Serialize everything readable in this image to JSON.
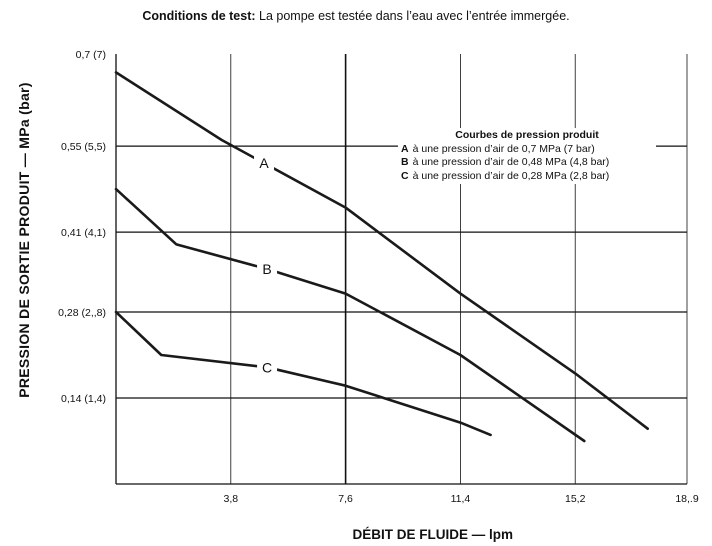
{
  "caption": {
    "prefix": "Conditions de test:",
    "text": "La pompe est testée dans l’eau avec l’entrée immergée."
  },
  "chart_data": {
    "type": "line",
    "xlabel": "DÉBIT DE FLUIDE — lpm",
    "ylabel": "PRESSION DE SORTIE PRODUIT — MPa (bar)",
    "xlim": [
      0,
      18.9
    ],
    "ylim": [
      0,
      0.7
    ],
    "x_ticks": [
      {
        "value": 3.8,
        "label": "3,8"
      },
      {
        "value": 7.6,
        "label": "7,6"
      },
      {
        "value": 11.4,
        "label": "11,4"
      },
      {
        "value": 15.2,
        "label": "15,2"
      },
      {
        "value": 18.9,
        "label": "18,.9"
      }
    ],
    "y_ticks": [
      {
        "value": 0.14,
        "label": "0,14 (1,4)"
      },
      {
        "value": 0.28,
        "label": "0,28 (2,,8)"
      },
      {
        "value": 0.41,
        "label": "0,41 (4,1)"
      },
      {
        "value": 0.55,
        "label": "0,55 (5,5)"
      },
      {
        "value": 0.7,
        "label": "0,7 (7)"
      }
    ],
    "grid": true,
    "legend": {
      "title": "Courbes de pression produit",
      "position": "top-right",
      "entries": [
        {
          "key": "A",
          "text": "à une pression d’air de 0,7 MPa (7 bar)"
        },
        {
          "key": "B",
          "text": "à une pression d’air de 0,48 MPa (4,8 bar)"
        },
        {
          "key": "C",
          "text": "à une pression d’air de 0,28 MPa (2,8 bar)"
        }
      ]
    },
    "series": [
      {
        "name": "A",
        "x": [
          0,
          3.5,
          7.6,
          11.4,
          15.2,
          17.6
        ],
        "y": [
          0.67,
          0.56,
          0.45,
          0.31,
          0.18,
          0.09
        ]
      },
      {
        "name": "B",
        "x": [
          0,
          2.0,
          5.0,
          7.6,
          11.4,
          15.5
        ],
        "y": [
          0.48,
          0.39,
          0.35,
          0.31,
          0.21,
          0.07
        ]
      },
      {
        "name": "C",
        "x": [
          0,
          1.5,
          5.0,
          7.6,
          11.4,
          12.4
        ],
        "y": [
          0.28,
          0.21,
          0.19,
          0.16,
          0.1,
          0.08
        ]
      }
    ],
    "curve_color": "#1a1a1a"
  }
}
